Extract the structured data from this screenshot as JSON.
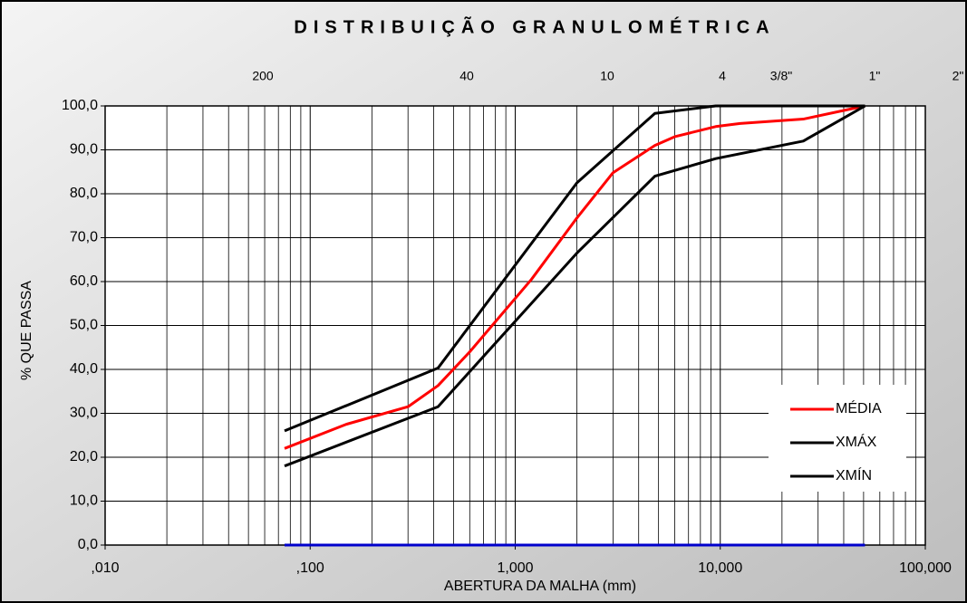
{
  "chart_data": {
    "type": "line",
    "title": "DISTRIBUIÇÃO GRANULOMÉTRICA",
    "xlabel": "ABERTURA DA MALHA (mm)",
    "ylabel": "% QUE PASSA",
    "top_labels": [
      "200",
      "40",
      "10",
      "4",
      "3/8\"",
      "1\"",
      "2\""
    ],
    "xscale": "log",
    "xlim": [
      0.01,
      100
    ],
    "xticks": [
      {
        "value": 0.01,
        "label": ",010"
      },
      {
        "value": 0.1,
        "label": ",100"
      },
      {
        "value": 1,
        "label": "1,000"
      },
      {
        "value": 10,
        "label": "10,000"
      },
      {
        "value": 100,
        "label": "100,000"
      }
    ],
    "ylim": [
      0,
      100
    ],
    "yticks": [
      {
        "value": 0,
        "label": "0,0"
      },
      {
        "value": 10,
        "label": "10,0"
      },
      {
        "value": 20,
        "label": "20,0"
      },
      {
        "value": 30,
        "label": "30,0"
      },
      {
        "value": 40,
        "label": "40,0"
      },
      {
        "value": 50,
        "label": "50,0"
      },
      {
        "value": 60,
        "label": "60,0"
      },
      {
        "value": 70,
        "label": "70,0"
      },
      {
        "value": 80,
        "label": "80,0"
      },
      {
        "value": 90,
        "label": "90,0"
      },
      {
        "value": 100,
        "label": "100,0"
      }
    ],
    "grid": true,
    "minor_grid": true,
    "legend": "lower right",
    "series": [
      {
        "name": "MÉDIA",
        "color": "#ff0000",
        "x": [
          0.075,
          0.15,
          0.3,
          0.42,
          0.6,
          1.2,
          2.0,
          3.0,
          4.8,
          6.0,
          9.5,
          12.5,
          25.4,
          50.8
        ],
        "values": [
          22,
          27.5,
          31.5,
          36.3,
          44,
          60.5,
          74.5,
          84.8,
          91,
          93,
          95.3,
          96,
          97,
          100
        ]
      },
      {
        "name": "XMÁX",
        "color": "#000000",
        "x": [
          0.075,
          0.42,
          2.0,
          4.8,
          9.5,
          25.4,
          50.8
        ],
        "values": [
          26,
          40.3,
          82.5,
          98.3,
          100,
          100,
          100
        ]
      },
      {
        "name": "XMÍN",
        "color": "#000000",
        "x": [
          0.075,
          0.42,
          2.0,
          4.8,
          9.5,
          25.4,
          50.8
        ],
        "values": [
          18,
          31.5,
          66.5,
          84,
          88,
          92,
          100
        ]
      },
      {
        "color": "#0000cc",
        "x": [
          0.075,
          50.8
        ],
        "values": [
          0,
          0
        ]
      }
    ]
  }
}
